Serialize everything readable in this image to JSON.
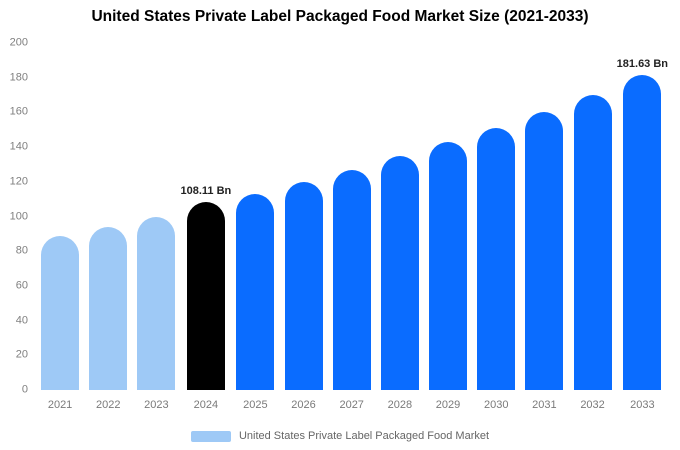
{
  "title": "United States Private Label Packaged Food Market Size (2021-2033)",
  "legend": {
    "label": "United States Private Label Packaged Food Market",
    "swatch_color": "#9ec9f6"
  },
  "colors": {
    "light_blue": "#9ec9f6",
    "highlight_black": "#000000",
    "primary_blue": "#0a6cff",
    "axis_text": "#7f7f7f",
    "annotation_text": "#222222"
  },
  "chart_data": {
    "type": "bar",
    "title": "United States Private Label Packaged Food Market Size (2021-2033)",
    "xlabel": "",
    "ylabel": "",
    "categories": [
      "2021",
      "2022",
      "2023",
      "2024",
      "2025",
      "2026",
      "2027",
      "2028",
      "2029",
      "2030",
      "2031",
      "2032",
      "2033"
    ],
    "values": [
      89,
      94,
      100,
      108.11,
      113,
      120,
      127,
      135,
      143,
      151,
      160,
      170,
      181.63
    ],
    "bar_colors": [
      "#9ec9f6",
      "#9ec9f6",
      "#9ec9f6",
      "#000000",
      "#0a6cff",
      "#0a6cff",
      "#0a6cff",
      "#0a6cff",
      "#0a6cff",
      "#0a6cff",
      "#0a6cff",
      "#0a6cff",
      "#0a6cff"
    ],
    "ylim": [
      0,
      200
    ],
    "yticks": [
      0,
      20,
      40,
      60,
      80,
      100,
      120,
      140,
      160,
      180,
      200
    ],
    "grid": false,
    "legend_position": "bottom",
    "legend_entries": [
      "United States Private Label Packaged Food Market"
    ],
    "annotations": [
      {
        "index": 3,
        "text": "108.11 Bn"
      },
      {
        "index": 12,
        "text": "181.63 Bn"
      }
    ]
  }
}
